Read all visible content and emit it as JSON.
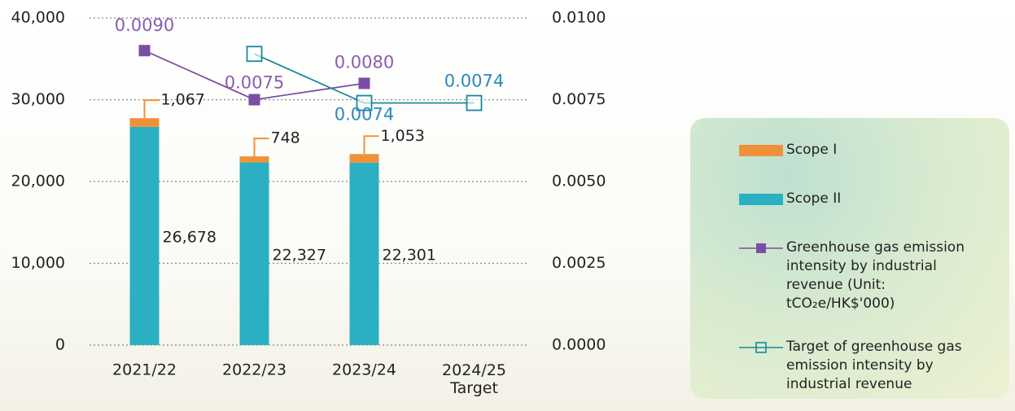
{
  "chart_data": {
    "type": "bar",
    "categories": [
      "2021/22",
      "2022/23",
      "2023/24",
      "2024/25\nTarget"
    ],
    "series": [
      {
        "name": "Scope I",
        "type": "bar",
        "color": "#f0913a",
        "values": [
          1067,
          748,
          1053,
          null
        ],
        "value_labels": [
          "1,067",
          "748",
          "1,053",
          null
        ]
      },
      {
        "name": "Scope II",
        "type": "bar",
        "color": "#2ab0c2",
        "values": [
          26678,
          22327,
          22301,
          null
        ],
        "value_labels": [
          "26,678",
          "22,327",
          "22,301",
          null
        ]
      },
      {
        "name": "Greenhouse gas emission intensity by industrial revenue (Unit: tCO₂e/HK$'000)",
        "type": "line",
        "axis": "y2",
        "color": "#7a4fa3",
        "marker": "filled-square",
        "values": [
          0.009,
          0.0075,
          0.008,
          null
        ],
        "value_labels": [
          "0.0090",
          "0.0075",
          "0.0080",
          null
        ]
      },
      {
        "name": "Target of greenhouse gas emission intensity by industrial revenue",
        "type": "line",
        "axis": "y2",
        "color": "#17899b",
        "marker": "hollow-square",
        "values": [
          null,
          0.0089,
          0.0074,
          0.0074
        ],
        "value_labels": [
          null,
          null,
          "0.0074",
          "0.0074"
        ]
      }
    ],
    "ylim": [
      0,
      40000
    ],
    "yticks": [
      0,
      {
        "value": 10000,
        "label": "10,000"
      },
      {
        "value": 20000,
        "label": "20,000"
      },
      {
        "value": 30000,
        "label": "30,000"
      },
      {
        "value": 40000,
        "label": "40,000"
      }
    ],
    "y2lim": [
      0,
      0.01
    ],
    "y2ticks": [
      {
        "value": 0,
        "label": "0.0000"
      },
      {
        "value": 0.0025,
        "label": "0.0025"
      },
      {
        "value": 0.005,
        "label": "0.0050"
      },
      {
        "value": 0.0075,
        "label": "0.0075"
      },
      {
        "value": 0.01,
        "label": "0.0100"
      }
    ],
    "grid": true
  }
}
